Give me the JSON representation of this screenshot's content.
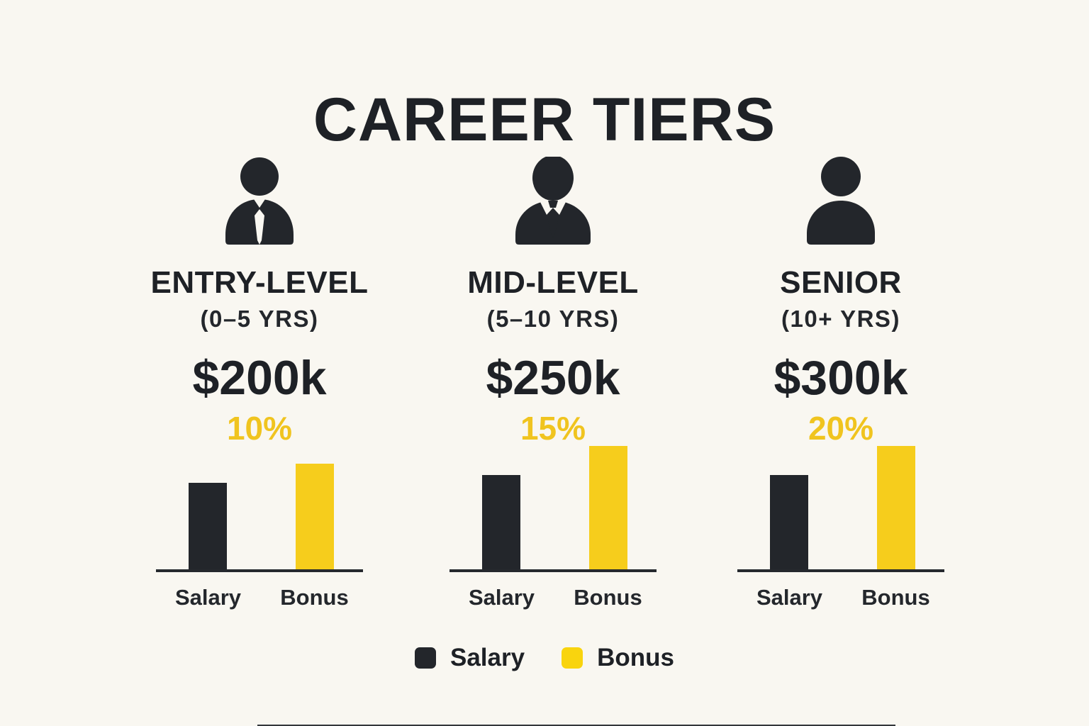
{
  "title": "CAREER TIERS",
  "colors": {
    "background": "#F9F7F1",
    "dark": "#23262B",
    "yellow": "#F6CD1C",
    "percent_text": "#F0C41F"
  },
  "tiers": [
    {
      "name": "ENTRY-LEVEL",
      "years": "(0–5 YRS)",
      "salary": "$200k",
      "bonus_pct": "10%",
      "icon": "person-with-tie-icon",
      "salary_label": "Salary",
      "bonus_label": "Bonus",
      "bars": {
        "salary_h": 122,
        "bonus_h": 149
      }
    },
    {
      "name": "MID-LEVEL",
      "years": "(5–10 YRS)",
      "salary": "$250k",
      "bonus_pct": "15%",
      "icon": "person-in-suit-icon",
      "salary_label": "Salary",
      "bonus_label": "Bonus",
      "bars": {
        "salary_h": 133,
        "bonus_h": 174
      }
    },
    {
      "name": "SENIOR",
      "years": "(10+ YRS)",
      "salary": "$300k",
      "bonus_pct": "20%",
      "icon": "person-icon",
      "salary_label": "Salary",
      "bonus_label": "Bonus",
      "bars": {
        "salary_h": 133,
        "bonus_h": 174
      }
    }
  ],
  "legend": [
    {
      "label": "Salary",
      "color": "#23262B"
    },
    {
      "label": "Bonus",
      "color": "#F9D40E"
    }
  ],
  "chart_data": [
    {
      "type": "bar",
      "title": "ENTRY-LEVEL (0–5 YRS)",
      "categories": [
        "Salary",
        "Bonus"
      ],
      "values": [
        122,
        149
      ],
      "values_unit": "relative bar height (px as drawn, no numeric axis shown)",
      "salary_value_label": "$200k",
      "bonus_percent_label": "10%",
      "series_colors": [
        "#23262B",
        "#F6CD1C"
      ],
      "grid": false,
      "legend_position": "bottom-shared"
    },
    {
      "type": "bar",
      "title": "MID-LEVEL (5–10 YRS)",
      "categories": [
        "Salary",
        "Bonus"
      ],
      "values": [
        133,
        174
      ],
      "values_unit": "relative bar height (px as drawn, no numeric axis shown)",
      "salary_value_label": "$250k",
      "bonus_percent_label": "15%",
      "series_colors": [
        "#23262B",
        "#F6CD1C"
      ],
      "grid": false,
      "legend_position": "bottom-shared"
    },
    {
      "type": "bar",
      "title": "SENIOR (10+ YRS)",
      "categories": [
        "Salary",
        "Bonus"
      ],
      "values": [
        133,
        174
      ],
      "values_unit": "relative bar height (px as drawn, no numeric axis shown)",
      "salary_value_label": "$300k",
      "bonus_percent_label": "20%",
      "series_colors": [
        "#23262B",
        "#F6CD1C"
      ],
      "grid": false,
      "legend_position": "bottom-shared"
    }
  ]
}
